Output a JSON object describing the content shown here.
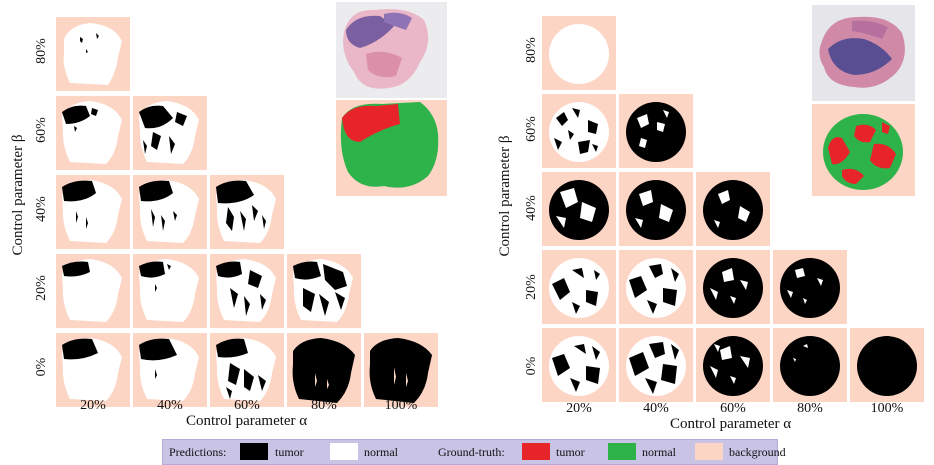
{
  "panels": [
    {
      "row_labels": [
        "80%",
        "60%",
        "40%",
        "20%",
        "0%"
      ],
      "col_labels": [
        "20%",
        "40%",
        "60%",
        "80%",
        "100%"
      ],
      "x_axis_label": "Control parameter α",
      "y_axis_label": "Control parameter β"
    },
    {
      "row_labels": [
        "80%",
        "60%",
        "40%",
        "20%",
        "0%"
      ],
      "col_labels": [
        "20%",
        "40%",
        "60%",
        "80%",
        "100%"
      ],
      "x_axis_label": "Control parameter α",
      "y_axis_label": "Control parameter β"
    }
  ],
  "legend": {
    "predictions_label": "Predictions:",
    "tumor": "tumor",
    "normal": "normal",
    "ground_truth_label": "Ground-truth:",
    "gt_tumor": "tumor",
    "gt_normal": "normal",
    "background": "background"
  },
  "colors": {
    "background": "#fcd5c4",
    "tumor_pred": "#000000",
    "normal_pred": "#ffffff",
    "gt_tumor": "#e8242b",
    "gt_normal": "#2db34a",
    "legend_bg": "#c9c3e6"
  }
}
